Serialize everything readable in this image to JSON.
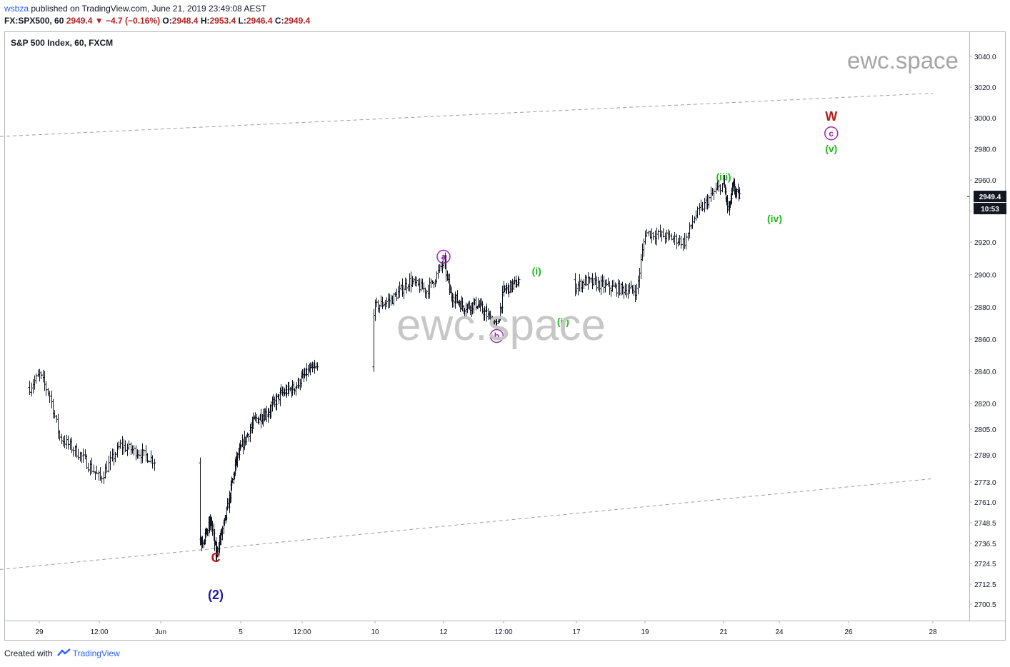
{
  "header": {
    "user": "wsbza",
    "published_text": "published on TradingView.com, June 21, 2019 23:49:08 AEST",
    "symbol_line": "FX:SPX500, 60",
    "last": "2949.4",
    "change": "−4.7 (−0.16%)",
    "o_label": "O:",
    "o_value": "2948.4",
    "h_label": "H:",
    "h_value": "2953.4",
    "l_label": "L:",
    "l_value": "2946.4",
    "c_label": "C:",
    "c_value": "2949.4"
  },
  "footer": {
    "created_with": "Created with",
    "brand": "TradingView"
  },
  "watermark": {
    "top": "ewc.space",
    "center": "ewc.space"
  },
  "chart_data": {
    "type": "candlestick",
    "title": "S&P 500 Index, 60, FXCM",
    "x_tick_labels": [
      "29",
      "12:00",
      "Jun",
      "5",
      "12:00",
      "10",
      "12",
      "12:00",
      "17",
      "19",
      "21",
      "24",
      "26",
      "28"
    ],
    "y_tick_labels": [
      "3040.0",
      "3020.0",
      "3000.0",
      "2980.0",
      "2960.0",
      "2940.0",
      "2920.0",
      "2900.0",
      "2880.0",
      "2860.0",
      "2840.0",
      "2820.0",
      "2805.0",
      "2789.0",
      "2773.0",
      "2761.0",
      "2748.5",
      "2736.5",
      "2724.5",
      "2712.5",
      "2700.5"
    ],
    "last_price_label": "2949.4",
    "countdown_label": "10:53",
    "colors": {
      "bars": "#131722",
      "last_price_bg": "#131722",
      "channel": "#9e9e9e",
      "wave_red": "#b71c1c",
      "wave_magenta": "#9c27b0",
      "wave_green": "#1fb81f",
      "wave_blue": "#1a1aa6"
    },
    "series_anchors": [
      {
        "t": "May 28 18:00",
        "v": 2830
      },
      {
        "t": "May 29 00:00",
        "v": 2838
      },
      {
        "t": "May 29 06:00",
        "v": 2825
      },
      {
        "t": "May 29 12:00",
        "v": 2800
      },
      {
        "t": "May 30 00:00",
        "v": 2789
      },
      {
        "t": "May 30 12:00",
        "v": 2775
      },
      {
        "t": "May 31 00:00",
        "v": 2795
      },
      {
        "t": "May 31 12:00",
        "v": 2790
      },
      {
        "t": "Jun 2 12:00",
        "v": 2765
      },
      {
        "t": "Jun 3 00:00",
        "v": 2737
      },
      {
        "t": "Jun 3 06:00",
        "v": 2742
      },
      {
        "t": "Jun 3 12:00",
        "v": 2750
      },
      {
        "t": "Jun 3 18:00",
        "v": 2730
      },
      {
        "t": "Jun 4 06:00",
        "v": 2752
      },
      {
        "t": "Jun 4 18:00",
        "v": 2785
      },
      {
        "t": "Jun 5 12:00",
        "v": 2810
      },
      {
        "t": "Jun 6 00:00",
        "v": 2815
      },
      {
        "t": "Jun 6 12:00",
        "v": 2826
      },
      {
        "t": "Jun 7 00:00",
        "v": 2830
      },
      {
        "t": "Jun 7 12:00",
        "v": 2840
      },
      {
        "t": "Jun 9 12:00",
        "v": 2852
      },
      {
        "t": "Jun 10 00:00",
        "v": 2880
      },
      {
        "t": "Jun 10 12:00",
        "v": 2885
      },
      {
        "t": "Jun 11 00:00",
        "v": 2896
      },
      {
        "t": "Jun 11 12:00",
        "v": 2890
      },
      {
        "t": "Jun 11 18:00",
        "v": 2898
      },
      {
        "t": "Jun 12 00:00",
        "v": 2908
      },
      {
        "t": "Jun 12 06:00",
        "v": 2888
      },
      {
        "t": "Jun 12 18:00",
        "v": 2880
      },
      {
        "t": "Jun 13 06:00",
        "v": 2882
      },
      {
        "t": "Jun 14 00:00",
        "v": 2868
      },
      {
        "t": "Jun 14 06:00",
        "v": 2890
      },
      {
        "t": "Jun 14 18:00",
        "v": 2895
      },
      {
        "t": "Jun 16 06:00",
        "v": 2884
      },
      {
        "t": "Jun 16 18:00",
        "v": 2890
      },
      {
        "t": "Jun 17 06:00",
        "v": 2896
      },
      {
        "t": "Jun 18 00:00",
        "v": 2892
      },
      {
        "t": "Jun 18 18:00",
        "v": 2890
      },
      {
        "t": "Jun 19 00:00",
        "v": 2926
      },
      {
        "t": "Jun 19 12:00",
        "v": 2924
      },
      {
        "t": "Jun 20 00:00",
        "v": 2920
      },
      {
        "t": "Jun 20 06:00",
        "v": 2936
      },
      {
        "t": "Jun 20 18:00",
        "v": 2952
      },
      {
        "t": "Jun 21 00:00",
        "v": 2958
      },
      {
        "t": "Jun 21 06:00",
        "v": 2940
      },
      {
        "t": "Jun 21 12:00",
        "v": 2956
      },
      {
        "t": "Jun 21 18:00",
        "v": 2950
      },
      {
        "t": "Jun 23 18:00",
        "v": 2949.4
      }
    ],
    "wave_labels": [
      {
        "text": "C",
        "style": "plain",
        "color": "red",
        "t": "Jun 3 18:00",
        "v": 2728
      },
      {
        "text": "(2)",
        "style": "plain",
        "color": "blue",
        "t": "Jun 3 18:00",
        "v": 2706
      },
      {
        "text": "a",
        "style": "circle",
        "color": "magenta",
        "t": "Jun 12 00:00",
        "v": 2911
      },
      {
        "text": "b",
        "style": "circle",
        "color": "magenta",
        "t": "Jun 14 00:00",
        "v": 2862
      },
      {
        "text": "(i)",
        "style": "plain",
        "color": "green",
        "t": "Jun 15 12:00",
        "v": 2902
      },
      {
        "text": "(ii)",
        "style": "plain",
        "color": "green",
        "t": "Jun 16 12:00",
        "v": 2871
      },
      {
        "text": "(iii)",
        "style": "plain",
        "color": "green",
        "t": "Jun 21 00:00",
        "v": 2962
      },
      {
        "text": "(iv)",
        "style": "plain",
        "color": "green",
        "t": "Jun 23 18:00",
        "v": 2935
      },
      {
        "text": "(v)",
        "style": "plain",
        "color": "green",
        "t": "Jun 25 12:00",
        "v": 2980
      },
      {
        "text": "c",
        "style": "circle",
        "color": "magenta",
        "t": "Jun 25 12:00",
        "v": 2990
      },
      {
        "text": "W",
        "style": "plain",
        "color": "red",
        "t": "Jun 25 12:00",
        "v": 3001
      }
    ],
    "channel_lines": [
      {
        "name": "upper",
        "start": {
          "t": "May 28 00:00",
          "v": 2988
        },
        "end": {
          "t": "Jun 29 00:00",
          "v": 3016
        }
      },
      {
        "name": "lower",
        "start": {
          "t": "May 28 00:00",
          "v": 2721
        },
        "end": {
          "t": "Jun 29 00:00",
          "v": 2775
        }
      }
    ]
  }
}
